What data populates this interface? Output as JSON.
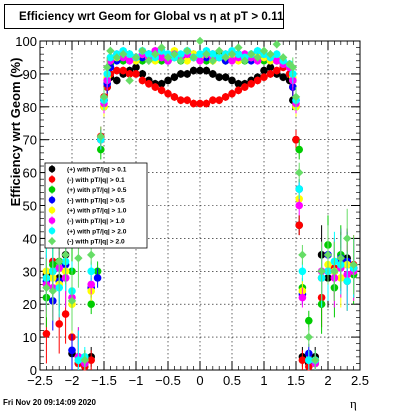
{
  "title": "Efficiency wrt Geom for Global vs   η at pT > 0.11",
  "footer": "Fri Nov 20 09:14:09 2020",
  "chart_data": {
    "type": "scatter",
    "xlabel": "η",
    "ylabel": "Efficiency wrt Geom (%)",
    "xlim": [
      -2.5,
      2.5
    ],
    "ylim": [
      0,
      100
    ],
    "x_ticks": [
      -2.5,
      -2,
      -1.5,
      -1,
      -0.5,
      0,
      0.5,
      1,
      1.5,
      2,
      2.5
    ],
    "x_tick_labels": [
      "−2.5",
      "−2",
      "−1.5",
      "−1",
      "−0.5",
      "0",
      "0.5",
      "1",
      "1.5",
      "2",
      "2.5"
    ],
    "y_ticks": [
      0,
      10,
      20,
      30,
      40,
      50,
      60,
      70,
      80,
      90,
      100
    ],
    "grid": true,
    "legend_position": "left-middle",
    "series": [
      {
        "name": "(+) with pT/|q| > 0.1",
        "color": "#000000",
        "marker": "circle",
        "x": [
          -2.4,
          -2.3,
          -2.2,
          -2.1,
          -2.0,
          -1.9,
          -1.8,
          -1.7,
          -1.6,
          -1.55,
          -1.5,
          -1.45,
          -1.4,
          -1.3,
          -1.2,
          -1.1,
          -1.0,
          -0.9,
          -0.8,
          -0.7,
          -0.6,
          -0.5,
          -0.4,
          -0.3,
          -0.2,
          -0.1,
          0.0,
          0.1,
          0.2,
          0.3,
          0.4,
          0.5,
          0.6,
          0.7,
          0.8,
          0.9,
          1.0,
          1.1,
          1.2,
          1.3,
          1.4,
          1.45,
          1.5,
          1.55,
          1.6,
          1.7,
          1.8,
          1.9,
          2.0,
          2.1,
          2.2,
          2.3,
          2.4
        ],
        "y": [
          29,
          30,
          28,
          35,
          5,
          2,
          3,
          4,
          44,
          70,
          82,
          86,
          89,
          88,
          90,
          91,
          92,
          90,
          88,
          87,
          87,
          88,
          89,
          90,
          90,
          91,
          91,
          91,
          90,
          89,
          89,
          88,
          87,
          87,
          88,
          89,
          91,
          92,
          90,
          89,
          88,
          82,
          70,
          44,
          4,
          2,
          4,
          35,
          28,
          30,
          33,
          34,
          31
        ]
      },
      {
        "name": "(-) with pT/|q| > 0.1",
        "color": "#ff0000",
        "marker": "circle",
        "x": [
          -2.4,
          -2.3,
          -2.2,
          -2.1,
          -2.0,
          -1.9,
          -1.8,
          -1.7,
          -1.6,
          -1.55,
          -1.5,
          -1.45,
          -1.4,
          -1.3,
          -1.2,
          -1.1,
          -1.0,
          -0.9,
          -0.8,
          -0.7,
          -0.6,
          -0.5,
          -0.4,
          -0.3,
          -0.2,
          -0.1,
          0.0,
          0.1,
          0.2,
          0.3,
          0.4,
          0.5,
          0.6,
          0.7,
          0.8,
          0.9,
          1.0,
          1.1,
          1.2,
          1.3,
          1.4,
          1.45,
          1.5,
          1.55,
          1.6,
          1.7,
          1.8,
          1.9,
          2.0,
          2.1,
          2.2,
          2.3,
          2.4
        ],
        "y": [
          11,
          33,
          14,
          17,
          10,
          2,
          1,
          3,
          44,
          71,
          83,
          86,
          90,
          91,
          91,
          90,
          90,
          88,
          87,
          86,
          85,
          84,
          83,
          82,
          82,
          81,
          81,
          81,
          82,
          82,
          83,
          84,
          85,
          86,
          87,
          88,
          89,
          90,
          91,
          92,
          90,
          86,
          70,
          44,
          3,
          1,
          2,
          22,
          30,
          31,
          33,
          27,
          32
        ]
      },
      {
        "name": "(+) with pT/|q| > 0.5",
        "color": "#00cc00",
        "marker": "circle",
        "x": [
          -2.4,
          -2.3,
          -2.2,
          -2.1,
          -2.0,
          -1.9,
          -1.8,
          -1.7,
          -1.6,
          -1.55,
          -1.5,
          -1.45,
          -1.4,
          -1.3,
          -1.2,
          -1.1,
          -1.0,
          -0.9,
          -0.8,
          -0.7,
          -0.6,
          -0.5,
          -0.4,
          -0.3,
          -0.2,
          -0.1,
          0.0,
          0.1,
          0.2,
          0.3,
          0.4,
          0.5,
          0.6,
          0.7,
          0.8,
          0.9,
          1.0,
          1.1,
          1.2,
          1.3,
          1.4,
          1.45,
          1.5,
          1.55,
          1.6,
          1.7,
          1.8,
          1.9,
          2.0,
          2.1,
          2.2,
          2.3,
          2.4
        ],
        "y": [
          22,
          32,
          33,
          28,
          30,
          4,
          2,
          20,
          30,
          67,
          80,
          88,
          93,
          95,
          94,
          96,
          95,
          94,
          96,
          95,
          94,
          96,
          95,
          94,
          96,
          95,
          96,
          94,
          95,
          96,
          94,
          95,
          96,
          94,
          95,
          96,
          94,
          95,
          94,
          93,
          92,
          88,
          80,
          67,
          25,
          15,
          3,
          20,
          38,
          25,
          35,
          32,
          29
        ]
      },
      {
        "name": "(-) with pT/|q| > 0.5",
        "color": "#0000ff",
        "marker": "circle",
        "x": [
          -2.4,
          -2.3,
          -2.2,
          -2.1,
          -2.0,
          -1.9,
          -1.8,
          -1.7,
          -1.6,
          -1.55,
          -1.5,
          -1.45,
          -1.4,
          -1.3,
          -1.2,
          -1.1,
          -1.0,
          -0.9,
          -0.8,
          -0.7,
          -0.6,
          -0.5,
          -0.4,
          -0.3,
          -0.2,
          -0.1,
          0.0,
          0.1,
          0.2,
          0.3,
          0.4,
          0.5,
          0.6,
          0.7,
          0.8,
          0.9,
          1.0,
          1.1,
          1.2,
          1.3,
          1.4,
          1.45,
          1.5,
          1.55,
          1.6,
          1.7,
          1.8,
          1.9,
          2.0,
          2.1,
          2.2,
          2.3,
          2.4
        ],
        "y": [
          27,
          21,
          27,
          32,
          6,
          3,
          2,
          25,
          28,
          70,
          82,
          87,
          92,
          94,
          95,
          95,
          94,
          95,
          96,
          95,
          95,
          94,
          96,
          95,
          95,
          96,
          95,
          95,
          96,
          95,
          94,
          95,
          96,
          95,
          94,
          96,
          95,
          94,
          95,
          93,
          92,
          86,
          82,
          55,
          23,
          5,
          2,
          28,
          35,
          30,
          34,
          33,
          31
        ]
      },
      {
        "name": "(+) with pT/|q| > 1.0",
        "color": "#ffff00",
        "marker": "circle",
        "x": [
          -2.4,
          -2.3,
          -2.2,
          -2.1,
          -2.0,
          -1.9,
          -1.8,
          -1.7,
          -1.6,
          -1.55,
          -1.5,
          -1.45,
          -1.4,
          -1.3,
          -1.2,
          -1.1,
          -1.0,
          -0.9,
          -0.8,
          -0.7,
          -0.6,
          -0.5,
          -0.4,
          -0.3,
          -0.2,
          -0.1,
          0.0,
          0.1,
          0.2,
          0.3,
          0.4,
          0.5,
          0.6,
          0.7,
          0.8,
          0.9,
          1.0,
          1.1,
          1.2,
          1.3,
          1.4,
          1.45,
          1.5,
          1.55,
          1.6,
          1.7,
          1.8,
          1.9,
          2.0,
          2.1,
          2.2,
          2.3,
          2.4
        ],
        "y": [
          30,
          28,
          26,
          30,
          20,
          3,
          3,
          24,
          52,
          70,
          80,
          89,
          94,
          95,
          96,
          95,
          94,
          96,
          95,
          94,
          96,
          95,
          97,
          95,
          94,
          96,
          95,
          96,
          94,
          95,
          96,
          95,
          94,
          96,
          95,
          96,
          95,
          94,
          95,
          93,
          92,
          89,
          80,
          52,
          24,
          3,
          2,
          28,
          32,
          30,
          28,
          32,
          30
        ]
      },
      {
        "name": "(-) with pT/|q| > 1.0",
        "color": "#ff00ff",
        "marker": "circle",
        "x": [
          -2.4,
          -2.3,
          -2.2,
          -2.1,
          -2.0,
          -1.9,
          -1.8,
          -1.7,
          -1.6,
          -1.55,
          -1.5,
          -1.45,
          -1.4,
          -1.3,
          -1.2,
          -1.1,
          -1.0,
          -0.9,
          -0.8,
          -0.7,
          -0.6,
          -0.5,
          -0.4,
          -0.3,
          -0.2,
          -0.1,
          0.0,
          0.1,
          0.2,
          0.3,
          0.4,
          0.5,
          0.6,
          0.7,
          0.8,
          0.9,
          1.0,
          1.1,
          1.2,
          1.3,
          1.4,
          1.45,
          1.5,
          1.55,
          1.6,
          1.7,
          1.8,
          1.9,
          2.0,
          2.1,
          2.2,
          2.3,
          2.4
        ],
        "y": [
          26,
          25,
          31,
          28,
          22,
          4,
          2,
          26,
          50,
          70,
          81,
          88,
          94,
          96,
          95,
          94,
          95,
          96,
          95,
          97,
          95,
          94,
          96,
          95,
          96,
          95,
          94,
          96,
          95,
          95,
          96,
          94,
          95,
          96,
          95,
          94,
          96,
          95,
          94,
          93,
          92,
          88,
          81,
          50,
          22,
          3,
          2,
          30,
          30,
          28,
          31,
          29,
          30
        ]
      },
      {
        "name": "(+) with pT/|q| > 2.0",
        "color": "#00ffff",
        "marker": "circle",
        "x": [
          -2.4,
          -2.3,
          -2.2,
          -2.1,
          -2.0,
          -1.9,
          -1.8,
          -1.7,
          -1.6,
          -1.55,
          -1.5,
          -1.45,
          -1.4,
          -1.3,
          -1.2,
          -1.1,
          -1.0,
          -0.9,
          -0.8,
          -0.7,
          -0.6,
          -0.5,
          -0.4,
          -0.3,
          -0.2,
          -0.1,
          0.0,
          0.1,
          0.2,
          0.3,
          0.4,
          0.5,
          0.6,
          0.7,
          0.8,
          0.9,
          1.0,
          1.1,
          1.2,
          1.3,
          1.4,
          1.45,
          1.5,
          1.55,
          1.6,
          1.7,
          1.8,
          1.9,
          2.0,
          2.1,
          2.2,
          2.3,
          2.4
        ],
        "y": [
          28,
          30,
          25,
          33,
          24,
          3,
          4,
          30,
          55,
          70,
          82,
          90,
          95,
          96,
          97,
          96,
          95,
          97,
          96,
          95,
          97,
          96,
          95,
          96,
          97,
          95,
          96,
          97,
          96,
          95,
          96,
          97,
          96,
          95,
          96,
          97,
          96,
          95,
          96,
          94,
          93,
          90,
          82,
          55,
          30,
          3,
          3,
          28,
          30,
          33,
          32,
          27,
          31
        ]
      },
      {
        "name": "(-) with pT/|q| > 2.0",
        "color": "#66dd66",
        "marker": "diamond",
        "x": [
          -2.4,
          -2.3,
          -2.2,
          -2.1,
          -2.0,
          -1.9,
          -1.8,
          -1.7,
          -1.6,
          -1.55,
          -1.5,
          -1.45,
          -1.4,
          -1.3,
          -1.2,
          -1.1,
          -1.0,
          -0.9,
          -0.8,
          -0.7,
          -0.6,
          -0.5,
          -0.4,
          -0.3,
          -0.2,
          -0.1,
          0.0,
          0.1,
          0.2,
          0.3,
          0.4,
          0.5,
          0.6,
          0.7,
          0.8,
          0.9,
          1.0,
          1.1,
          1.2,
          1.3,
          1.4,
          1.45,
          1.5,
          1.55,
          1.6,
          1.7,
          1.8,
          1.9,
          2.0,
          2.1,
          2.2,
          2.3,
          2.4
        ],
        "y": [
          25,
          24,
          33,
          35,
          21,
          34,
          3,
          35,
          60,
          71,
          83,
          92,
          97,
          95,
          96,
          88,
          95,
          97,
          94,
          96,
          98,
          95,
          96,
          94,
          97,
          95,
          100,
          96,
          94,
          97,
          95,
          96,
          98,
          94,
          96,
          95,
          97,
          96,
          99,
          95,
          93,
          92,
          83,
          60,
          35,
          10,
          3,
          30,
          35,
          30,
          34,
          40,
          32
        ]
      }
    ]
  }
}
